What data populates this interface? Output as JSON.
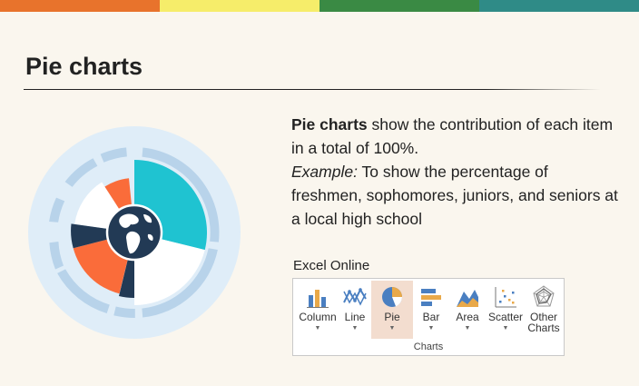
{
  "top_bar": {
    "colors": [
      "#e8732c",
      "#f6ed6a",
      "#3a8a44",
      "#2f8b87"
    ]
  },
  "header": {
    "title": "Pie charts"
  },
  "graphic": {
    "icon": "pie-globe-icon"
  },
  "description": {
    "term": "Pie charts",
    "definition": " show the contribution of each item in a total of 100%.",
    "example_label": "Example:",
    "example_text": " To show the percentage of freshmen, sophomores, juniors, and seniors at a local high school"
  },
  "excel": {
    "label": "Excel Online",
    "group_label": "Charts",
    "buttons": [
      {
        "label": "Column",
        "icon": "column-chart-icon"
      },
      {
        "label": "Line",
        "icon": "line-chart-icon"
      },
      {
        "label": "Pie",
        "icon": "pie-chart-icon",
        "selected": true
      },
      {
        "label": "Bar",
        "icon": "bar-chart-icon"
      },
      {
        "label": "Area",
        "icon": "area-chart-icon"
      },
      {
        "label": "Scatter",
        "icon": "scatter-chart-icon"
      },
      {
        "label": "Other Charts",
        "icon": "radar-chart-icon"
      }
    ]
  },
  "colors": {
    "teal": "#1fc3d1",
    "orange": "#fa6c3a",
    "navy": "#223a55",
    "light_blue": "#b8d3ea",
    "pale_blue": "#dfedf8"
  }
}
